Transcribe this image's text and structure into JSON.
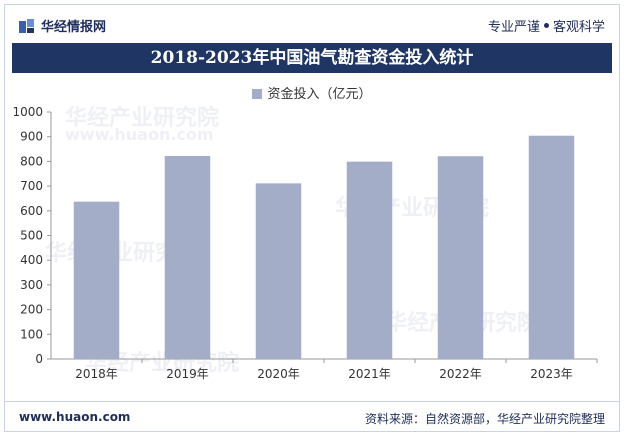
{
  "header": {
    "brand_name": "华经情报网",
    "tagline_left": "专业严谨",
    "tagline_right": "客观科学"
  },
  "chart_data": {
    "type": "bar",
    "title": "2018-2023年中国油气勘查资金投入统计",
    "categories": [
      "2018年",
      "2019年",
      "2020年",
      "2021年",
      "2022年",
      "2023年"
    ],
    "series": [
      {
        "name": "资金投入（亿元）",
        "values": [
          637,
          822,
          711,
          799,
          821,
          904
        ],
        "color": "#a3adc8"
      }
    ],
    "ylim": [
      0,
      1000
    ],
    "yticks": [
      "0",
      "100",
      "200",
      "300",
      "400",
      "500",
      "600",
      "700",
      "800",
      "900",
      "1000"
    ],
    "grid": false,
    "legend": "top-center"
  },
  "footer": {
    "url": "www.huaon.com",
    "source": "资料来源：自然资源部，华经产业研究院整理"
  },
  "watermark": [
    "华经产业研究院",
    "www.huaon.com"
  ]
}
